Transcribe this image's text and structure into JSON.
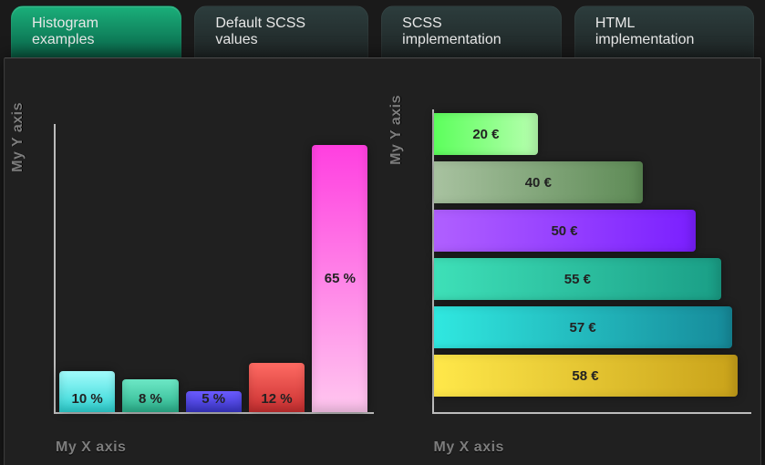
{
  "tabs": [
    {
      "label": "Histogram examples",
      "active": true
    },
    {
      "label": "Default SCSS values",
      "active": false
    },
    {
      "label": "SCSS implementation",
      "active": false
    },
    {
      "label": "HTML implementation",
      "active": false
    }
  ],
  "page": {
    "background_color": "#1a1a1a",
    "panel_color": "#202020",
    "axis_color": "#bcbcbc",
    "label_color": "#7d7d7d"
  },
  "vertical_chart": {
    "type": "bar",
    "orientation": "vertical",
    "x_label": "My X axis",
    "y_label": "My Y axis",
    "ylim": [
      0,
      70
    ],
    "label_fontsize": 16,
    "value_fontsize": 15,
    "value_font_weight": 700,
    "bars": [
      {
        "value": 10,
        "label": "10 %",
        "gradient": [
          "#a2fcfc",
          "#2dd3d3"
        ]
      },
      {
        "value": 8,
        "label": "8 %",
        "gradient": [
          "#6de8c6",
          "#2bb38d"
        ]
      },
      {
        "value": 5,
        "label": "5 %",
        "gradient": [
          "#6b5bff",
          "#3a36c9"
        ]
      },
      {
        "value": 12,
        "label": "12 %",
        "gradient": [
          "#ff6b63",
          "#c92f30"
        ]
      },
      {
        "value": 65,
        "label": "65 %",
        "gradient": [
          "#ff3fe0",
          "#ffc7ef"
        ]
      }
    ]
  },
  "horizontal_chart": {
    "type": "bar",
    "orientation": "horizontal",
    "x_label": "My X axis",
    "y_label": "My Y axis",
    "xlim": [
      0,
      60
    ],
    "label_fontsize": 16,
    "value_fontsize": 15,
    "value_font_weight": 700,
    "bars": [
      {
        "value": 20,
        "label": "20 €",
        "gradient": [
          "#5cff5c",
          "#b8ffb0"
        ]
      },
      {
        "value": 40,
        "label": "40 €",
        "gradient": [
          "#a8c2a0",
          "#5d8a55"
        ]
      },
      {
        "value": 50,
        "label": "50 €",
        "gradient": [
          "#b060ff",
          "#7a1fff"
        ]
      },
      {
        "value": 55,
        "label": "55 €",
        "gradient": [
          "#3ee0b8",
          "#1a9e86"
        ]
      },
      {
        "value": 57,
        "label": "57 €",
        "gradient": [
          "#30e8e0",
          "#168a9a"
        ]
      },
      {
        "value": 58,
        "label": "58 €",
        "gradient": [
          "#ffe84a",
          "#c9a21a"
        ]
      }
    ]
  }
}
